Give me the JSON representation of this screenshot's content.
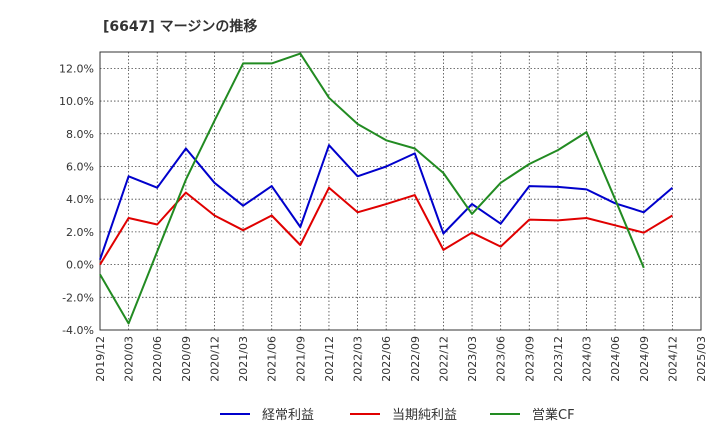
{
  "title": "[6647]  マージンの推移",
  "chart_data": {
    "type": "line",
    "x": [
      "2019/12",
      "2020/03",
      "2020/06",
      "2020/09",
      "2020/12",
      "2021/03",
      "2021/06",
      "2021/09",
      "2021/12",
      "2022/03",
      "2022/06",
      "2022/09",
      "2022/12",
      "2023/03",
      "2023/06",
      "2023/09",
      "2023/12",
      "2024/03",
      "2024/06",
      "2024/09",
      "2024/12",
      "2025/03"
    ],
    "yticks": [
      "-4.0%",
      "-2.0%",
      "0.0%",
      "2.0%",
      "4.0%",
      "6.0%",
      "8.0%",
      "10.0%",
      "12.0%"
    ],
    "ylim": [
      -4,
      13
    ],
    "grid": true,
    "legend_position": "bottom",
    "series": [
      {
        "name": "経常利益",
        "color": "#0000cc",
        "values": [
          0.3,
          5.4,
          4.7,
          7.1,
          5.0,
          3.6,
          4.8,
          2.3,
          7.3,
          5.4,
          6.0,
          6.8,
          1.9,
          3.7,
          2.5,
          4.8,
          4.75,
          4.6,
          3.75,
          3.2,
          4.7,
          null
        ]
      },
      {
        "name": "当期純利益",
        "color": "#e00000",
        "values": [
          0.0,
          2.85,
          2.45,
          4.4,
          3.0,
          2.1,
          3.0,
          1.2,
          4.7,
          3.2,
          3.7,
          4.25,
          0.9,
          1.95,
          1.1,
          2.75,
          2.7,
          2.85,
          2.4,
          1.95,
          3.0,
          null
        ]
      },
      {
        "name": "営業CF",
        "color": "#228b22",
        "values": [
          -0.6,
          -3.6,
          0.8,
          5.2,
          8.8,
          12.3,
          12.3,
          12.9,
          10.2,
          8.6,
          7.6,
          7.1,
          5.6,
          3.1,
          5.0,
          6.15,
          7.0,
          8.1,
          4.0,
          -0.2,
          null,
          null
        ]
      }
    ]
  }
}
